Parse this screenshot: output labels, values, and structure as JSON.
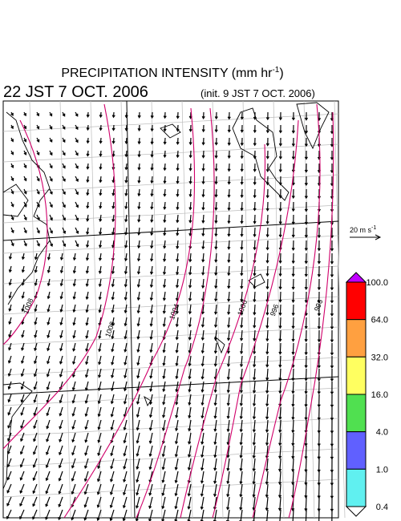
{
  "header": {
    "title": "PRECIPITATION INTENSITY (mm hr",
    "title_exponent": "-1",
    "title_close": ")",
    "valid_time": "22 JST 7 OCT. 2006",
    "init_time": "(init. 9 JST 7 OCT. 2006)"
  },
  "wind_scale": {
    "label": "20 m s",
    "exponent": "-1"
  },
  "isobar_labels": [
    "1008",
    "1008",
    "1004",
    "1000",
    "996",
    "996"
  ],
  "colorbar": {
    "labels": [
      "100.0",
      "64.0",
      "32.0",
      "16.0",
      "4.0",
      "1.0",
      "0.4"
    ],
    "colors": [
      "#ff0000",
      "#ffa040",
      "#ffff60",
      "#50e050",
      "#6060ff",
      "#60f0f0"
    ],
    "over_color": "#c000ff",
    "under_color": "#ffffff"
  }
}
